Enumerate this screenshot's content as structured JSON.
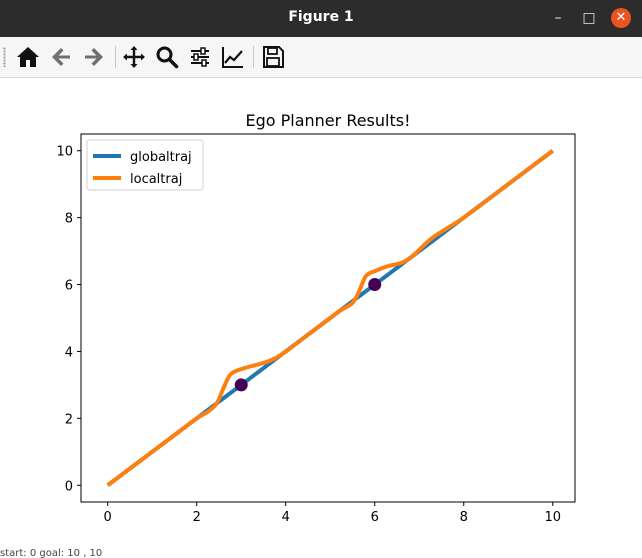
{
  "window": {
    "title": "Figure 1",
    "min_glyph": "–",
    "max_glyph": "□",
    "close_glyph": "✕"
  },
  "toolbar": {
    "buttons": [
      {
        "name": "home-icon"
      },
      {
        "name": "back-arrow-icon"
      },
      {
        "name": "forward-arrow-icon"
      },
      {
        "name": "pan-icon"
      },
      {
        "name": "zoom-icon"
      },
      {
        "name": "configure-subplots-icon"
      },
      {
        "name": "edit-axis-icon"
      },
      {
        "name": "save-icon"
      }
    ]
  },
  "colors": {
    "globaltraj": "#1f77b4",
    "localtraj": "#ff7f0e",
    "waypoint": "#440154"
  },
  "chart_data": {
    "type": "line",
    "title": "Ego Planner Results!",
    "xlabel": "",
    "ylabel": "",
    "xlim": [
      -0.6,
      10.5
    ],
    "ylim": [
      -0.5,
      10.5
    ],
    "xticks": [
      0,
      2,
      4,
      6,
      8,
      10
    ],
    "yticks": [
      0,
      2,
      4,
      6,
      8,
      10
    ],
    "grid": false,
    "legend_position": "upper-left",
    "series": [
      {
        "name": "globaltraj",
        "x": [
          0,
          10
        ],
        "y": [
          0,
          10
        ]
      },
      {
        "name": "localtraj",
        "x": [
          0,
          1,
          1.6,
          2.0,
          2.25,
          2.45,
          2.6,
          2.75,
          2.95,
          3.2,
          3.6,
          3.9,
          4.3,
          4.8,
          5.2,
          5.5,
          5.65,
          5.8,
          6.0,
          6.3,
          6.6,
          6.85,
          7.3,
          8,
          9,
          10
        ],
        "y": [
          0,
          1,
          1.6,
          2.0,
          2.2,
          2.45,
          2.9,
          3.3,
          3.45,
          3.55,
          3.7,
          3.9,
          4.3,
          4.8,
          5.2,
          5.45,
          5.8,
          6.25,
          6.4,
          6.55,
          6.65,
          6.85,
          7.4,
          8,
          9,
          10
        ]
      }
    ],
    "markers": [
      {
        "x": 3,
        "y": 3
      },
      {
        "x": 6,
        "y": 6
      }
    ]
  },
  "status": {
    "text": "start: 0  goal: 10 , 10"
  }
}
